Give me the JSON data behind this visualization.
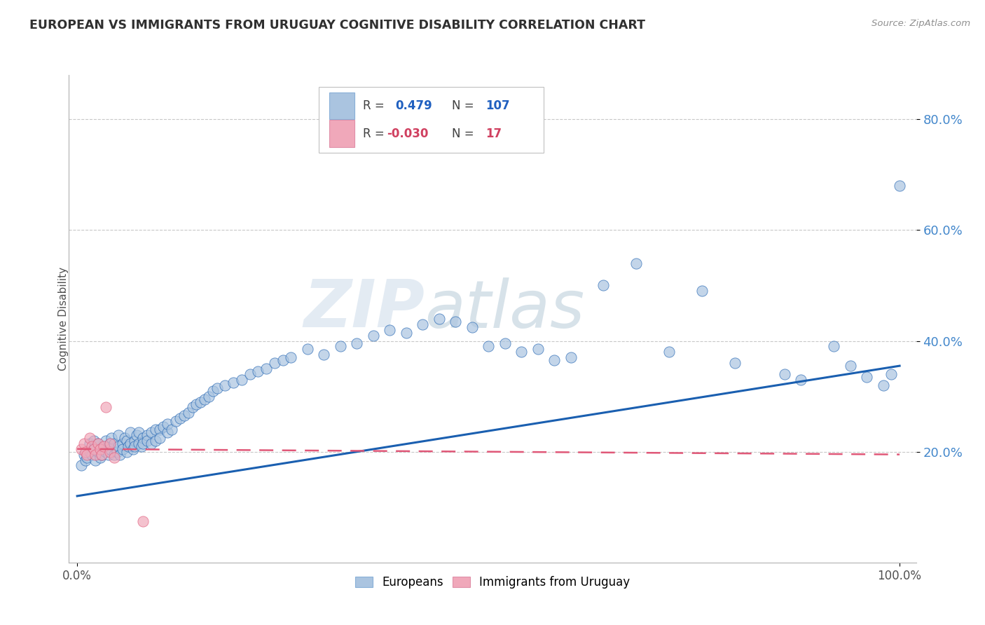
{
  "title": "EUROPEAN VS IMMIGRANTS FROM URUGUAY COGNITIVE DISABILITY CORRELATION CHART",
  "source": "Source: ZipAtlas.com",
  "ylabel": "Cognitive Disability",
  "xlim": [
    -0.01,
    1.02
  ],
  "ylim": [
    0.0,
    0.88
  ],
  "ytick_vals": [
    0.2,
    0.4,
    0.6,
    0.8
  ],
  "ytick_labels": [
    "20.0%",
    "40.0%",
    "60.0%",
    "80.0%"
  ],
  "xtick_vals": [
    0.0,
    1.0
  ],
  "xtick_labels": [
    "0.0%",
    "100.0%"
  ],
  "color_european": "#aac4e0",
  "color_uruguay": "#f0a8ba",
  "color_blue_line": "#1a5fb0",
  "color_pink_line": "#e05878",
  "color_ytick": "#4488cc",
  "color_title": "#303030",
  "color_source": "#909090",
  "background_color": "#ffffff",
  "watermark_zip": "ZIP",
  "watermark_atlas": "atlas",
  "europeans_x": [
    0.005,
    0.008,
    0.01,
    0.012,
    0.015,
    0.015,
    0.018,
    0.02,
    0.02,
    0.022,
    0.025,
    0.025,
    0.028,
    0.03,
    0.03,
    0.032,
    0.035,
    0.035,
    0.038,
    0.04,
    0.04,
    0.042,
    0.045,
    0.045,
    0.048,
    0.05,
    0.05,
    0.052,
    0.055,
    0.055,
    0.058,
    0.06,
    0.06,
    0.062,
    0.065,
    0.065,
    0.068,
    0.07,
    0.07,
    0.072,
    0.075,
    0.075,
    0.078,
    0.08,
    0.08,
    0.085,
    0.085,
    0.09,
    0.09,
    0.095,
    0.095,
    0.1,
    0.1,
    0.105,
    0.11,
    0.11,
    0.115,
    0.12,
    0.125,
    0.13,
    0.135,
    0.14,
    0.145,
    0.15,
    0.155,
    0.16,
    0.165,
    0.17,
    0.18,
    0.19,
    0.2,
    0.21,
    0.22,
    0.23,
    0.24,
    0.25,
    0.26,
    0.28,
    0.3,
    0.32,
    0.34,
    0.36,
    0.38,
    0.4,
    0.42,
    0.44,
    0.46,
    0.48,
    0.5,
    0.52,
    0.54,
    0.56,
    0.58,
    0.6,
    0.64,
    0.68,
    0.72,
    0.76,
    0.8,
    0.86,
    0.88,
    0.92,
    0.94,
    0.96,
    0.98,
    0.99,
    1.0
  ],
  "europeans_y": [
    0.175,
    0.195,
    0.185,
    0.19,
    0.2,
    0.215,
    0.195,
    0.205,
    0.22,
    0.185,
    0.2,
    0.215,
    0.19,
    0.205,
    0.195,
    0.21,
    0.2,
    0.22,
    0.195,
    0.215,
    0.205,
    0.225,
    0.195,
    0.215,
    0.2,
    0.21,
    0.23,
    0.195,
    0.215,
    0.205,
    0.225,
    0.2,
    0.22,
    0.21,
    0.215,
    0.235,
    0.205,
    0.22,
    0.21,
    0.23,
    0.215,
    0.235,
    0.21,
    0.225,
    0.215,
    0.23,
    0.22,
    0.235,
    0.215,
    0.24,
    0.22,
    0.24,
    0.225,
    0.245,
    0.235,
    0.25,
    0.24,
    0.255,
    0.26,
    0.265,
    0.27,
    0.28,
    0.285,
    0.29,
    0.295,
    0.3,
    0.31,
    0.315,
    0.32,
    0.325,
    0.33,
    0.34,
    0.345,
    0.35,
    0.36,
    0.365,
    0.37,
    0.385,
    0.375,
    0.39,
    0.395,
    0.41,
    0.42,
    0.415,
    0.43,
    0.44,
    0.435,
    0.425,
    0.39,
    0.395,
    0.38,
    0.385,
    0.365,
    0.37,
    0.5,
    0.54,
    0.38,
    0.49,
    0.36,
    0.34,
    0.33,
    0.39,
    0.355,
    0.335,
    0.32,
    0.34,
    0.68
  ],
  "uruguay_x": [
    0.005,
    0.008,
    0.01,
    0.012,
    0.015,
    0.018,
    0.02,
    0.022,
    0.025,
    0.028,
    0.03,
    0.032,
    0.035,
    0.04,
    0.04,
    0.045,
    0.08
  ],
  "uruguay_y": [
    0.205,
    0.215,
    0.2,
    0.195,
    0.225,
    0.21,
    0.205,
    0.195,
    0.215,
    0.205,
    0.195,
    0.21,
    0.28,
    0.2,
    0.215,
    0.19,
    0.075
  ],
  "blue_line_x": [
    0.0,
    1.0
  ],
  "blue_line_y": [
    0.12,
    0.355
  ],
  "pink_line_x": [
    0.0,
    1.0
  ],
  "pink_line_y": [
    0.205,
    0.195
  ]
}
